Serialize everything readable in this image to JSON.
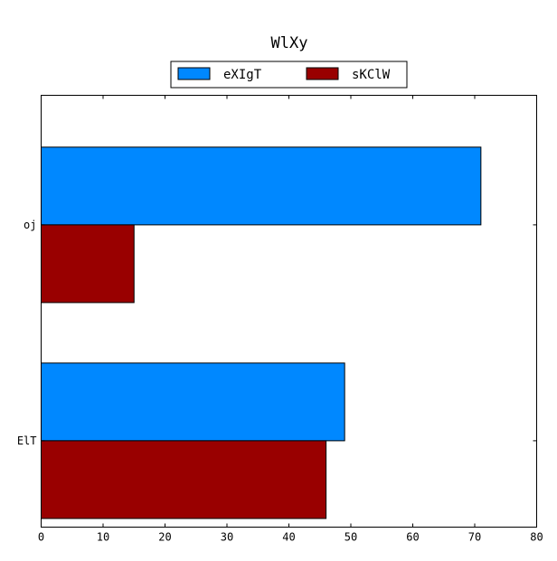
{
  "chart_data": {
    "type": "bar",
    "orientation": "horizontal",
    "title": "WlXy",
    "xlabel": "",
    "ylabel": "",
    "categories": [
      "oj",
      "ElT"
    ],
    "series": [
      {
        "name": "eXIgT",
        "values": [
          71,
          49
        ],
        "color": "#0088ff"
      },
      {
        "name": "sKClW",
        "values": [
          15,
          46
        ],
        "color": "#990000"
      }
    ],
    "xlim": [
      0,
      80
    ],
    "x_ticks": [
      0,
      10,
      20,
      30,
      40,
      50,
      60,
      70,
      80
    ],
    "grid": false,
    "legend_position": "top-center"
  }
}
